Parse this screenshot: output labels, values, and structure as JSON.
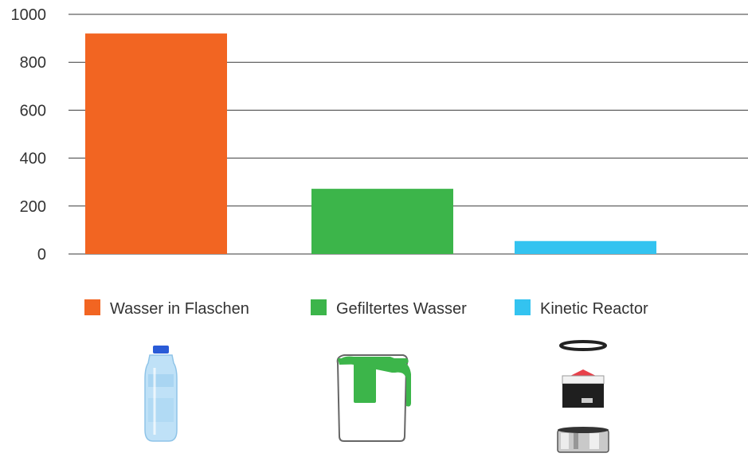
{
  "chart_data": {
    "type": "bar",
    "categories": [
      "Wasser in Flaschen",
      "Gefiltertes Wasser",
      "Kinetic Reactor"
    ],
    "values": [
      920,
      272,
      54
    ],
    "ylim": [
      0,
      1000
    ],
    "yticks": [
      0,
      200,
      400,
      600,
      800,
      1000
    ],
    "grid": true,
    "legend": "bottom",
    "colors": [
      "#f26522",
      "#3cb54a",
      "#33c3f0"
    ],
    "series": [
      {
        "name": "Wasser in Flaschen",
        "color": "#f26522"
      },
      {
        "name": "Gefiltertes Wasser",
        "color": "#3cb54a"
      },
      {
        "name": "Kinetic Reactor",
        "color": "#33c3f0"
      }
    ]
  },
  "icons": [
    "water-bottle-icon",
    "filter-jug-icon",
    "kinetic-reactor-icon"
  ]
}
